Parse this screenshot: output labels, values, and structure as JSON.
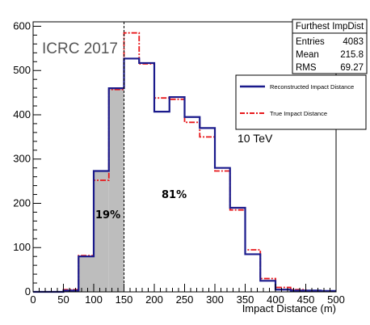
{
  "chart_data": {
    "type": "histogram",
    "watermark": "ICRC 2017",
    "xlabel": "Impact Distance (m)",
    "ylabel": "",
    "xlim": [
      0,
      500
    ],
    "ylim": [
      0,
      610
    ],
    "x_ticks": [
      0,
      50,
      100,
      150,
      200,
      250,
      300,
      350,
      400,
      450,
      500
    ],
    "y_ticks": [
      0,
      100,
      200,
      300,
      400,
      500,
      600
    ],
    "bin_edges": [
      0,
      25,
      50,
      75,
      100,
      125,
      150,
      175,
      200,
      225,
      250,
      275,
      300,
      325,
      350,
      375,
      400,
      425,
      450,
      475,
      500
    ],
    "series": [
      {
        "name": "Reconstructed Impact Distance",
        "color": "#1a1a8c",
        "style": "solid",
        "values": [
          0,
          0,
          3,
          80,
          273,
          460,
          527,
          517,
          407,
          440,
          395,
          370,
          280,
          190,
          85,
          25,
          5,
          3,
          3,
          2
        ]
      },
      {
        "name": "True Impact Distance",
        "color": "#e8191c",
        "style": "dash-dot",
        "values": [
          0,
          0,
          5,
          82,
          252,
          457,
          585,
          515,
          438,
          435,
          383,
          350,
          273,
          185,
          95,
          30,
          10,
          5,
          2,
          1
        ]
      }
    ],
    "shaded_region": {
      "x_from": 75,
      "x_to": 150,
      "fill": "#bdbdbd"
    },
    "cut_line_x": 150,
    "stats_box": {
      "title": "Furthest ImpDist",
      "rows": [
        {
          "label": "Entries",
          "value": "4083"
        },
        {
          "label": "Mean",
          "value": "215.8"
        },
        {
          "label": "RMS",
          "value": "69.27"
        }
      ]
    },
    "annotations": {
      "left_percent": "19%",
      "right_percent": "81%",
      "energy": "10 TeV"
    },
    "grid": false,
    "legend_position": "top-right"
  }
}
